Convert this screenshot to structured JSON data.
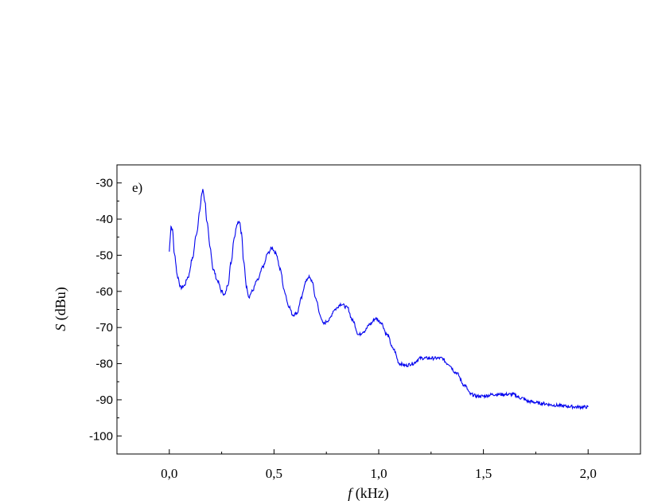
{
  "chart_data": {
    "type": "line",
    "panel_label": "e)",
    "xlabel_symbol": "f",
    "xlabel_unit": " (kHz)",
    "ylabel_symbol": "S",
    "ylabel_unit": " (dBu)",
    "xlim": [
      -0.25,
      2.25
    ],
    "ylim": [
      -105,
      -25
    ],
    "x_ticks": [
      {
        "value": 0.0,
        "label": "0,0"
      },
      {
        "value": 0.5,
        "label": "0,5"
      },
      {
        "value": 1.0,
        "label": "1,0"
      },
      {
        "value": 1.5,
        "label": "1,5"
      },
      {
        "value": 2.0,
        "label": "2,0"
      }
    ],
    "y_ticks": [
      {
        "value": -30,
        "label": "-30"
      },
      {
        "value": -40,
        "label": "-40"
      },
      {
        "value": -50,
        "label": "-50"
      },
      {
        "value": -60,
        "label": "-60"
      },
      {
        "value": -70,
        "label": "-70"
      },
      {
        "value": -80,
        "label": "-80"
      },
      {
        "value": -90,
        "label": "-90"
      },
      {
        "value": -100,
        "label": "-100"
      }
    ],
    "series": [
      {
        "color": "#0000ee",
        "points": [
          [
            0.0,
            -49
          ],
          [
            0.003,
            -46
          ],
          [
            0.008,
            -42
          ],
          [
            0.015,
            -43
          ],
          [
            0.025,
            -50
          ],
          [
            0.04,
            -56
          ],
          [
            0.055,
            -59
          ],
          [
            0.07,
            -58.5
          ],
          [
            0.09,
            -56
          ],
          [
            0.11,
            -51
          ],
          [
            0.13,
            -44
          ],
          [
            0.145,
            -38
          ],
          [
            0.155,
            -33
          ],
          [
            0.16,
            -32
          ],
          [
            0.17,
            -35
          ],
          [
            0.18,
            -41
          ],
          [
            0.195,
            -48
          ],
          [
            0.21,
            -54
          ],
          [
            0.23,
            -57
          ],
          [
            0.25,
            -60
          ],
          [
            0.265,
            -61
          ],
          [
            0.28,
            -58
          ],
          [
            0.295,
            -52
          ],
          [
            0.31,
            -45
          ],
          [
            0.325,
            -41
          ],
          [
            0.335,
            -40.5
          ],
          [
            0.345,
            -44
          ],
          [
            0.355,
            -52
          ],
          [
            0.37,
            -59
          ],
          [
            0.38,
            -61.5
          ],
          [
            0.395,
            -60
          ],
          [
            0.42,
            -57
          ],
          [
            0.45,
            -53
          ],
          [
            0.47,
            -49.5
          ],
          [
            0.49,
            -48
          ],
          [
            0.51,
            -49.5
          ],
          [
            0.53,
            -54
          ],
          [
            0.55,
            -60
          ],
          [
            0.57,
            -64
          ],
          [
            0.59,
            -66.5
          ],
          [
            0.61,
            -66
          ],
          [
            0.63,
            -62
          ],
          [
            0.65,
            -57.5
          ],
          [
            0.665,
            -56
          ],
          [
            0.68,
            -57
          ],
          [
            0.7,
            -62
          ],
          [
            0.72,
            -66.5
          ],
          [
            0.735,
            -69
          ],
          [
            0.76,
            -68
          ],
          [
            0.79,
            -65
          ],
          [
            0.82,
            -63.5
          ],
          [
            0.85,
            -64.5
          ],
          [
            0.875,
            -68
          ],
          [
            0.905,
            -72
          ],
          [
            0.93,
            -71
          ],
          [
            0.96,
            -69
          ],
          [
            0.985,
            -67.5
          ],
          [
            1.01,
            -68.5
          ],
          [
            1.04,
            -72
          ],
          [
            1.07,
            -76
          ],
          [
            1.1,
            -80
          ],
          [
            1.13,
            -80.5
          ],
          [
            1.16,
            -80
          ],
          [
            1.2,
            -78.5
          ],
          [
            1.25,
            -78.5
          ],
          [
            1.3,
            -78.5
          ],
          [
            1.33,
            -80
          ],
          [
            1.37,
            -82.5
          ],
          [
            1.41,
            -86
          ],
          [
            1.44,
            -88.5
          ],
          [
            1.47,
            -89
          ],
          [
            1.5,
            -89
          ],
          [
            1.55,
            -88.5
          ],
          [
            1.6,
            -88.5
          ],
          [
            1.64,
            -88.5
          ],
          [
            1.68,
            -89.5
          ],
          [
            1.72,
            -90.5
          ],
          [
            1.78,
            -91
          ],
          [
            1.84,
            -91.5
          ],
          [
            1.9,
            -91.8
          ],
          [
            1.95,
            -92
          ],
          [
            2.0,
            -92
          ]
        ]
      }
    ]
  }
}
